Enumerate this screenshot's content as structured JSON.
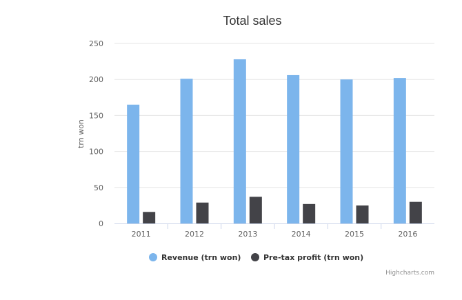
{
  "chart_data": {
    "type": "bar",
    "title": "Total sales",
    "ylabel": "trn won",
    "xlabel": "",
    "categories": [
      "2011",
      "2012",
      "2013",
      "2014",
      "2015",
      "2016"
    ],
    "ylim": [
      0,
      250
    ],
    "yticks": [
      0,
      50,
      100,
      150,
      200,
      250
    ],
    "grid": true,
    "legend_position": "bottom",
    "series": [
      {
        "name": "Revenue (trn won)",
        "color": "#7cb5ec",
        "values": [
          165,
          201,
          228,
          206,
          200,
          202
        ]
      },
      {
        "name": "Pre-tax profit (trn won)",
        "color": "#434348",
        "values": [
          16,
          29,
          37,
          27,
          25,
          30
        ]
      }
    ]
  },
  "credits": "Highcharts.com"
}
